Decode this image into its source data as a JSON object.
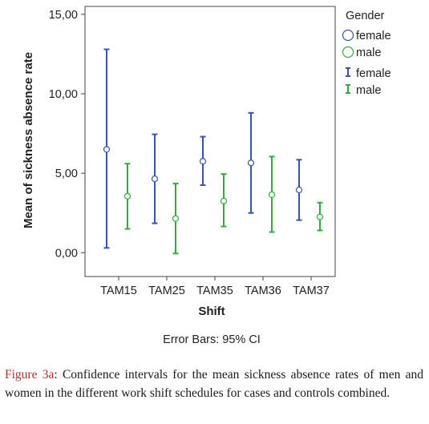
{
  "chart_data": {
    "type": "errorbar",
    "xlabel": "Shift",
    "ylabel": "Mean of sickness absence rate",
    "categories": [
      "TAM15",
      "TAM25",
      "TAM35",
      "TAM36",
      "TAM37"
    ],
    "ylim": [
      -1.5,
      15.5
    ],
    "yticks": [
      0,
      5,
      10,
      15
    ],
    "ytick_labels": [
      "0,00",
      "5,00",
      "10,00",
      "15,00"
    ],
    "grid": false,
    "legend_position": "right",
    "legend_title": "Gender",
    "legend_marker_labels": [
      "female",
      "male"
    ],
    "legend_bar_labels": [
      "female",
      "male"
    ],
    "note": "Error Bars: 95% CI",
    "series": [
      {
        "name": "female",
        "color": "#3a55a8",
        "means": [
          6.5,
          4.65,
          5.75,
          5.65,
          3.95
        ],
        "lower": [
          0.3,
          1.85,
          4.25,
          2.5,
          2.05
        ],
        "upper": [
          12.8,
          7.45,
          7.3,
          8.8,
          5.85
        ]
      },
      {
        "name": "male",
        "color": "#2eac3c",
        "means": [
          3.55,
          2.15,
          3.25,
          3.65,
          2.25
        ],
        "lower": [
          1.5,
          -0.05,
          1.65,
          1.3,
          1.4
        ],
        "upper": [
          5.6,
          4.35,
          4.95,
          6.05,
          3.15
        ]
      }
    ]
  },
  "caption": {
    "lead": "Figure 3a",
    "text": ": Confidence intervals for the mean sickness absence rates of men and women in the different work shift schedules for cases and controls combined."
  }
}
